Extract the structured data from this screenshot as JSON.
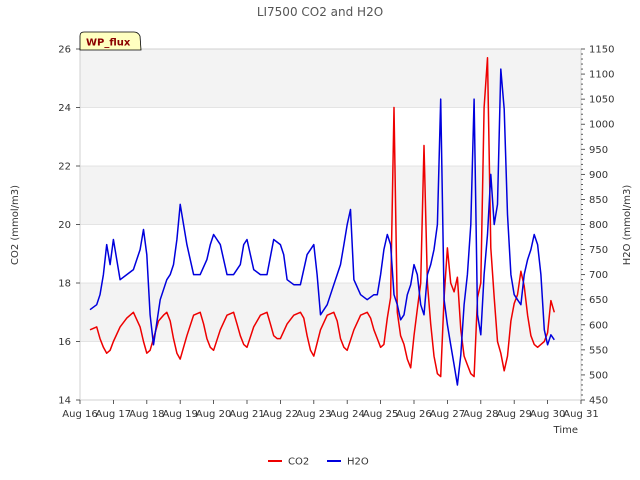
{
  "chart_data": {
    "type": "line",
    "title": "LI7500 CO2 and H2O",
    "badge": "WP_flux",
    "xlabel": "Time",
    "ylabel": "CO2 (mmol/m3)",
    "y2label": "H2O (mmol/m3)",
    "xlim": [
      16,
      31
    ],
    "ylim": [
      14,
      26
    ],
    "y2lim": [
      450,
      1150
    ],
    "x_ticks": [
      16,
      17,
      18,
      19,
      20,
      21,
      22,
      23,
      24,
      25,
      26,
      27,
      28,
      29,
      30,
      31
    ],
    "x_tick_labels": [
      "Aug 16",
      "Aug 17",
      "Aug 18",
      "Aug 19",
      "Aug 20",
      "Aug 21",
      "Aug 22",
      "Aug 23",
      "Aug 24",
      "Aug 25",
      "Aug 26",
      "Aug 27",
      "Aug 28",
      "Aug 29",
      "Aug 30",
      "Aug 31"
    ],
    "y_ticks": [
      14,
      16,
      18,
      20,
      22,
      24,
      26
    ],
    "y2_ticks": [
      450,
      500,
      550,
      600,
      650,
      700,
      750,
      800,
      850,
      900,
      950,
      1000,
      1050,
      1100,
      1150
    ],
    "bands": [
      [
        16,
        18
      ],
      [
        20,
        22
      ],
      [
        24,
        26
      ]
    ],
    "legend": "bottom-center",
    "series": [
      {
        "name": "CO2",
        "color": "#ee0000",
        "axis": "left",
        "x": [
          16.3,
          16.5,
          16.6,
          16.7,
          16.8,
          16.9,
          17.0,
          17.2,
          17.4,
          17.6,
          17.8,
          17.9,
          18.0,
          18.1,
          18.2,
          18.35,
          18.5,
          18.6,
          18.7,
          18.8,
          18.9,
          19.0,
          19.2,
          19.4,
          19.6,
          19.7,
          19.8,
          19.9,
          20.0,
          20.2,
          20.4,
          20.6,
          20.7,
          20.8,
          20.9,
          21.0,
          21.2,
          21.4,
          21.6,
          21.7,
          21.8,
          21.9,
          22.0,
          22.2,
          22.4,
          22.6,
          22.7,
          22.8,
          22.9,
          23.0,
          23.2,
          23.4,
          23.6,
          23.7,
          23.8,
          23.9,
          24.0,
          24.2,
          24.4,
          24.6,
          24.7,
          24.8,
          24.9,
          25.0,
          25.1,
          25.2,
          25.3,
          25.4,
          25.5,
          25.6,
          25.7,
          25.8,
          25.9,
          26.0,
          26.1,
          26.2,
          26.3,
          26.4,
          26.5,
          26.6,
          26.7,
          26.8,
          26.9,
          27.0,
          27.1,
          27.2,
          27.3,
          27.4,
          27.5,
          27.6,
          27.7,
          27.8,
          27.9,
          28.0,
          28.1,
          28.2,
          28.3,
          28.4,
          28.5,
          28.6,
          28.7,
          28.8,
          28.9,
          29.0,
          29.1,
          29.2,
          29.3,
          29.4,
          29.5,
          29.6,
          29.7,
          29.8,
          29.9,
          30.0,
          30.1,
          30.2
        ],
        "values": [
          16.4,
          16.5,
          16.1,
          15.8,
          15.6,
          15.7,
          16.0,
          16.5,
          16.8,
          17.0,
          16.5,
          16.0,
          15.6,
          15.7,
          16.1,
          16.7,
          16.9,
          17.0,
          16.7,
          16.1,
          15.6,
          15.4,
          16.2,
          16.9,
          17.0,
          16.6,
          16.1,
          15.8,
          15.7,
          16.4,
          16.9,
          17.0,
          16.6,
          16.2,
          15.9,
          15.8,
          16.5,
          16.9,
          17.0,
          16.6,
          16.2,
          16.1,
          16.1,
          16.6,
          16.9,
          17.0,
          16.8,
          16.2,
          15.7,
          15.5,
          16.4,
          16.9,
          17.0,
          16.7,
          16.1,
          15.8,
          15.7,
          16.4,
          16.9,
          17.0,
          16.8,
          16.4,
          16.1,
          15.8,
          15.9,
          16.8,
          17.5,
          24.0,
          17.0,
          16.2,
          15.9,
          15.4,
          15.1,
          16.2,
          17.1,
          18.0,
          22.7,
          18.0,
          16.6,
          15.5,
          14.9,
          14.8,
          17.5,
          19.2,
          18.0,
          17.7,
          18.2,
          16.4,
          15.5,
          15.2,
          14.9,
          14.8,
          17.5,
          18.0,
          24.0,
          25.7,
          19.2,
          17.5,
          16.0,
          15.6,
          15.0,
          15.5,
          16.7,
          17.3,
          17.6,
          18.4,
          17.9,
          16.9,
          16.2,
          15.9,
          15.8,
          15.9,
          16.0,
          16.3,
          17.4,
          17.0
        ],
        "lw": 1.5
      },
      {
        "name": "H2O",
        "color": "#0000dd",
        "axis": "right",
        "x": [
          16.3,
          16.5,
          16.6,
          16.7,
          16.8,
          16.9,
          17.0,
          17.2,
          17.4,
          17.5,
          17.6,
          17.8,
          17.9,
          18.0,
          18.1,
          18.2,
          18.4,
          18.6,
          18.7,
          18.8,
          18.9,
          19.0,
          19.2,
          19.4,
          19.6,
          19.8,
          19.9,
          20.0,
          20.2,
          20.4,
          20.6,
          20.8,
          20.9,
          21.0,
          21.2,
          21.4,
          21.6,
          21.8,
          22.0,
          22.1,
          22.2,
          22.4,
          22.6,
          22.8,
          22.9,
          23.0,
          23.1,
          23.2,
          23.4,
          23.6,
          23.8,
          23.9,
          24.0,
          24.1,
          24.2,
          24.4,
          24.6,
          24.8,
          24.9,
          25.0,
          25.1,
          25.2,
          25.3,
          25.4,
          25.5,
          25.6,
          25.7,
          25.8,
          25.9,
          26.0,
          26.1,
          26.2,
          26.3,
          26.4,
          26.5,
          26.6,
          26.7,
          26.8,
          26.9,
          27.0,
          27.1,
          27.2,
          27.3,
          27.4,
          27.5,
          27.6,
          27.7,
          27.8,
          27.9,
          28.0,
          28.1,
          28.2,
          28.3,
          28.4,
          28.5,
          28.6,
          28.7,
          28.8,
          28.9,
          29.0,
          29.1,
          29.2,
          29.3,
          29.4,
          29.5,
          29.6,
          29.7,
          29.8,
          29.9,
          30.0,
          30.1,
          30.2
        ],
        "values": [
          630,
          640,
          660,
          700,
          760,
          720,
          770,
          690,
          700,
          705,
          710,
          750,
          790,
          740,
          620,
          560,
          650,
          690,
          700,
          720,
          770,
          840,
          760,
          700,
          700,
          730,
          760,
          780,
          760,
          700,
          700,
          720,
          760,
          770,
          710,
          700,
          700,
          770,
          760,
          740,
          690,
          680,
          680,
          740,
          750,
          760,
          700,
          620,
          640,
          680,
          720,
          760,
          800,
          830,
          690,
          660,
          650,
          660,
          660,
          700,
          750,
          780,
          760,
          660,
          640,
          610,
          620,
          660,
          680,
          720,
          700,
          640,
          620,
          700,
          720,
          750,
          800,
          1050,
          650,
          600,
          560,
          520,
          480,
          540,
          640,
          700,
          800,
          1050,
          620,
          580,
          700,
          780,
          900,
          800,
          840,
          1110,
          1030,
          820,
          700,
          660,
          650,
          640,
          700,
          730,
          750,
          780,
          760,
          700,
          590,
          560,
          580,
          570
        ],
        "lw": 1.5
      }
    ]
  }
}
